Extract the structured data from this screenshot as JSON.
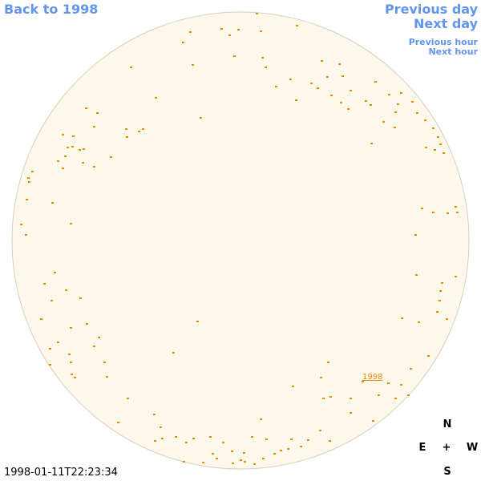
{
  "navigation": {
    "back": "Back to 1998",
    "previous_day": "Previous day",
    "next_day": "Next day",
    "previous_hour": "Previous hour",
    "next_hour": "Next hour"
  },
  "timestamp": "1998-01-11T22:23:34",
  "compass": {
    "north": "N",
    "east": "E",
    "center": "+",
    "west": "W",
    "south": "S"
  },
  "disk_label": "1998"
}
